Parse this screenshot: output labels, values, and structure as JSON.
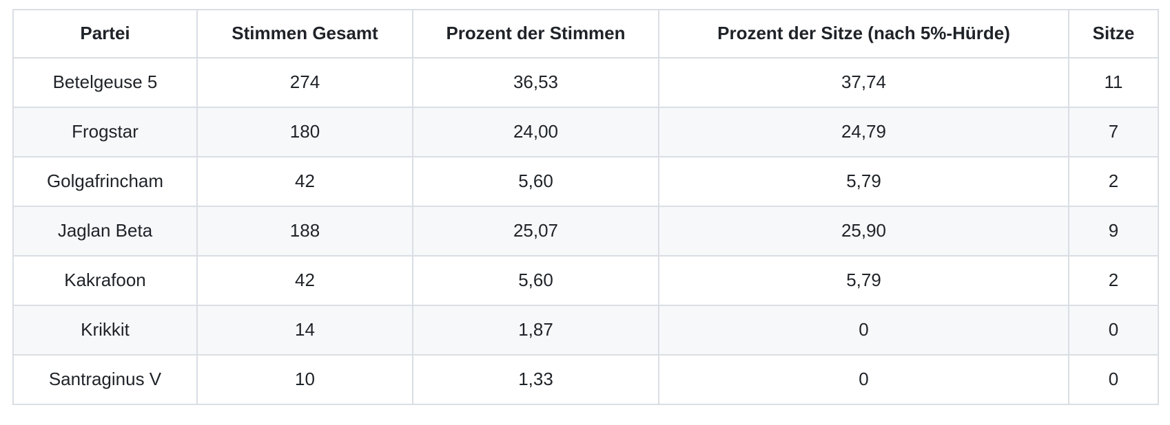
{
  "chart_data": {
    "type": "table",
    "title": "",
    "columns": [
      "Partei",
      "Stimmen Gesamt",
      "Prozent der Stimmen",
      "Prozent der Sitze (nach 5%-Hürde)",
      "Sitze"
    ],
    "rows": [
      [
        "Betelgeuse 5",
        "274",
        "36,53",
        "37,74",
        "11"
      ],
      [
        "Frogstar",
        "180",
        "24,00",
        "24,79",
        "7"
      ],
      [
        "Golgafrincham",
        "42",
        "5,60",
        "5,79",
        "2"
      ],
      [
        "Jaglan Beta",
        "188",
        "25,07",
        "25,90",
        "9"
      ],
      [
        "Kakrafoon",
        "42",
        "5,60",
        "5,79",
        "2"
      ],
      [
        "Krikkit",
        "14",
        "1,87",
        "0",
        "0"
      ],
      [
        "Santraginus V",
        "10",
        "1,33",
        "0",
        "0"
      ]
    ],
    "layout_hints": {
      "cell_alignment": "center",
      "zebra_striping": true,
      "grid": true
    }
  },
  "colors": {
    "background": "#ffffff",
    "border": "#d9dee4",
    "zebra_row": "#f6f8fa",
    "text": "#1f2328"
  }
}
